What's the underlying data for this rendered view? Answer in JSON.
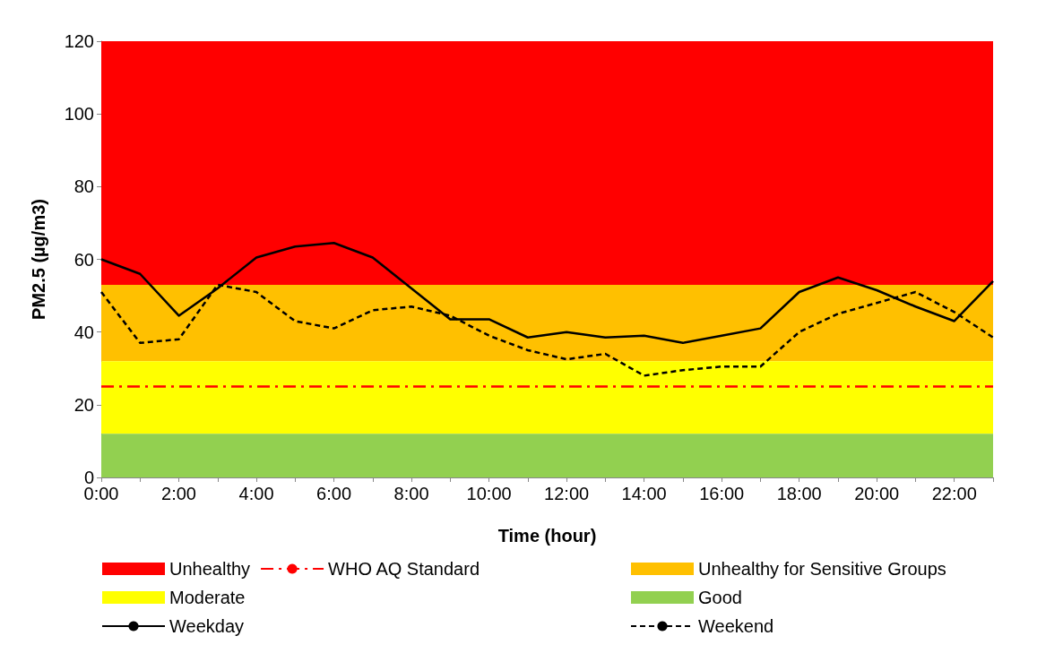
{
  "chart_data": {
    "type": "line",
    "xlabel": "Time (hour)",
    "ylabel": "PM2.5 (µg/m3)",
    "categories": [
      "0:00",
      null,
      "2:00",
      null,
      "4:00",
      null,
      "6:00",
      null,
      "8:00",
      null,
      "10:00",
      null,
      "12:00",
      null,
      "14:00",
      null,
      "16:00",
      null,
      "18:00",
      null,
      "20:00",
      null,
      "22:00",
      null
    ],
    "series": [
      {
        "name": "Weekday",
        "color": "#000000",
        "line_style": "solid",
        "values": [
          60,
          56,
          44.5,
          52,
          60.5,
          63.5,
          64.5,
          60.5,
          52,
          43.5,
          43.5,
          38.5,
          40,
          38.5,
          39,
          37,
          39,
          41,
          51,
          55,
          51.5,
          47,
          43,
          54
        ]
      },
      {
        "name": "Weekend",
        "color": "#000000",
        "line_style": "dashed",
        "values": [
          51,
          37,
          38,
          53,
          51,
          43,
          41,
          46,
          47,
          44.5,
          39,
          35,
          32.5,
          34,
          28,
          29.5,
          30.5,
          30.5,
          40,
          45,
          48,
          51,
          45.5,
          38.5
        ]
      }
    ],
    "bands": [
      {
        "axis": "y",
        "from": 53,
        "to": 120,
        "label": "Unhealthy",
        "color": "#ff0000"
      },
      {
        "axis": "y",
        "from": 32,
        "to": 53,
        "label": "Unhealthy for Sensitive Groups",
        "color": "#ffc000"
      },
      {
        "axis": "y",
        "from": 12,
        "to": 32,
        "label": "Moderate",
        "color": "#ffff00"
      },
      {
        "axis": "y",
        "from": 0,
        "to": 12,
        "label": "Good",
        "color": "#92d050"
      }
    ],
    "ref_lines": [
      {
        "axis": "y",
        "value": 25,
        "label": "WHO AQ Standard",
        "color": "#ff0000",
        "line_style": "dashdot"
      }
    ],
    "ylim": [
      0,
      120
    ],
    "yticks": [
      0,
      20,
      40,
      60,
      80,
      100,
      120
    ],
    "grid": false,
    "legend": "bottom",
    "marker": "none"
  }
}
